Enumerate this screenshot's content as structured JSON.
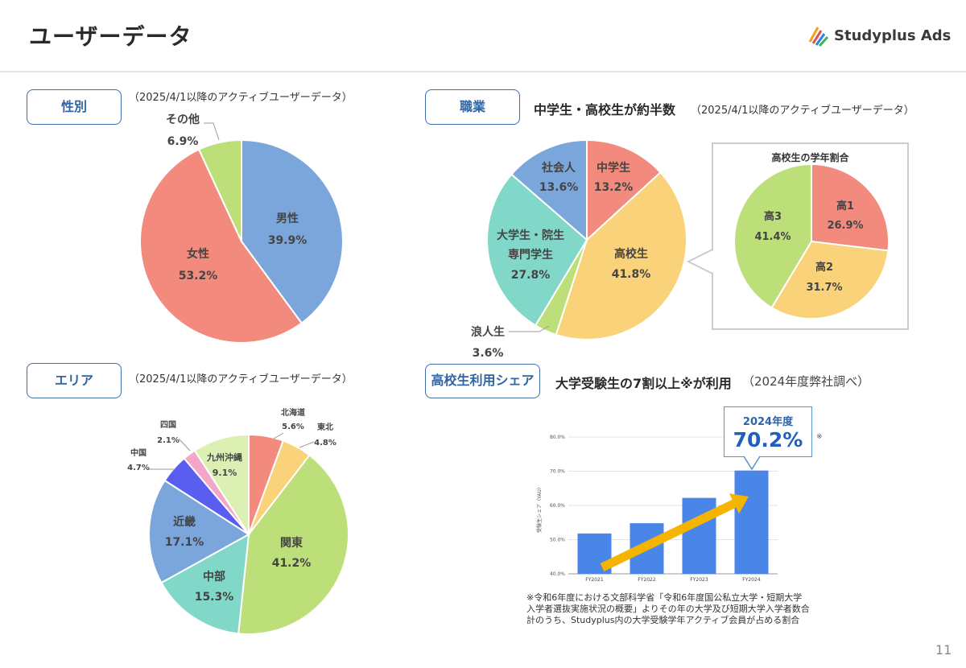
{
  "page": {
    "title": "ユーザーデータ",
    "logo": "Studyplus Ads",
    "page_number": "11",
    "colors": {
      "accent": "#3d6ea8",
      "arrow": "#f5b400",
      "bar": "#4a86e8"
    }
  },
  "gender": {
    "tag": "性別",
    "note": "（2025/4/1以降のアクティブユーザーデータ）",
    "labels": [
      {
        "name": "男性",
        "value": "39.9%"
      },
      {
        "name": "女性",
        "value": "53.2%"
      },
      {
        "name": "その他",
        "value": "6.9%"
      }
    ]
  },
  "occupation": {
    "tag": "職業",
    "headline": "中学生・高校生が約半数",
    "note": "（2025/4/1以降のアクティブユーザーデータ）",
    "labels": [
      {
        "name": "中学生",
        "value": "13.2%"
      },
      {
        "name": "高校生",
        "value": "41.8%"
      },
      {
        "name": "浪人生",
        "value": "3.6%"
      },
      {
        "name1": "大学生・院生",
        "name2": "専門学生",
        "value": "27.8%"
      },
      {
        "name": "社会人",
        "value": "13.6%"
      }
    ],
    "inset_title": "高校生の学年割合",
    "inset_labels": [
      {
        "name": "高1",
        "value": "26.9%"
      },
      {
        "name": "高2",
        "value": "31.7%"
      },
      {
        "name": "高3",
        "value": "41.4%"
      }
    ]
  },
  "area": {
    "tag": "エリア",
    "note": "（2025/4/1以降のアクティブユーザーデータ）",
    "labels": [
      {
        "name": "北海道",
        "value": "5.6%"
      },
      {
        "name": "東北",
        "value": "4.8%"
      },
      {
        "name": "関東",
        "value": "41.2%"
      },
      {
        "name": "中部",
        "value": "15.3%"
      },
      {
        "name": "近畿",
        "value": "17.1%"
      },
      {
        "name": "中国",
        "value": "4.7%"
      },
      {
        "name": "四国",
        "value": "2.1%"
      },
      {
        "name": "九州沖縄",
        "value": "9.1%"
      }
    ]
  },
  "share": {
    "tag": "高校生利用シェア",
    "headline": "大学受験生の7割以上※が利用",
    "headline_sub": "（2024年度弊社調べ）",
    "callout_label": "2024年度",
    "callout_value": "70.2%",
    "callout_note": "※",
    "footnote": [
      "※令和6年度における文部科学省「令和6年度国公私立大学・短期大学",
      "入学者選抜実施状況の概要」よりその年の大学及び短期大学入学者数合",
      "計のうち、Studyplus内の大学受験学年アクティブ会員が占める割合"
    ]
  },
  "chart_data": [
    {
      "type": "pie",
      "categories": [
        "男性",
        "女性",
        "その他"
      ],
      "values": [
        39.9,
        53.2,
        6.9
      ],
      "colors": [
        "#7aa6dc",
        "#f28b7d",
        "#bcdf7a"
      ]
    },
    {
      "type": "pie",
      "categories": [
        "中学生",
        "高校生",
        "浪人生",
        "大学生・院生 専門学生",
        "社会人"
      ],
      "values": [
        13.2,
        41.8,
        3.6,
        27.8,
        13.6
      ],
      "colors": [
        "#f28b7d",
        "#f9d27a",
        "#bcdf7a",
        "#82d8c8",
        "#7aa6dc"
      ]
    },
    {
      "type": "pie",
      "title": "高校生の学年割合",
      "categories": [
        "高1",
        "高2",
        "高3"
      ],
      "values": [
        26.9,
        31.7,
        41.4
      ],
      "colors": [
        "#f28b7d",
        "#f9d27a",
        "#bcdf7a"
      ]
    },
    {
      "type": "pie",
      "categories": [
        "北海道",
        "東北",
        "関東",
        "中部",
        "近畿",
        "中国",
        "四国",
        "九州沖縄"
      ],
      "values": [
        5.6,
        4.8,
        41.2,
        15.3,
        17.1,
        4.7,
        2.1,
        9.1
      ],
      "colors": [
        "#f28b7d",
        "#f9d27a",
        "#bcdf7a",
        "#82d8c8",
        "#7aa6dc",
        "#5a5ef0",
        "#f4a6c8",
        "#ddf0b4"
      ]
    },
    {
      "type": "bar",
      "categories": [
        "FY2021",
        "FY2022",
        "FY2023",
        "FY2024"
      ],
      "values": [
        51.8,
        54.8,
        62.2,
        70.2
      ],
      "ylabel": "受験生シェア（YAU）",
      "yticks": [
        "40.0%",
        "50.0%",
        "60.0%",
        "70.0%",
        "80.0%"
      ],
      "ylim": [
        40,
        80
      ],
      "grid": true
    }
  ]
}
